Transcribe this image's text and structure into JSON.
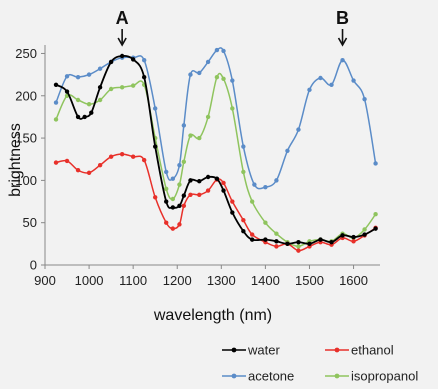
{
  "chart_data": {
    "type": "line",
    "title": "",
    "xlabel": "wavelength (nm)",
    "ylabel": "brightness",
    "xlim": [
      900,
      1660
    ],
    "ylim": [
      0,
      260
    ],
    "xticks": [
      900,
      1000,
      1100,
      1200,
      1300,
      1400,
      1500,
      1600
    ],
    "yticks": [
      0,
      50,
      100,
      150,
      200,
      250
    ],
    "grid": false,
    "legend_position": "bottom",
    "annotations": [
      {
        "label": "A",
        "x": 1075
      },
      {
        "label": "B",
        "x": 1575
      }
    ],
    "series": [
      {
        "name": "water",
        "color": "#000000",
        "x": [
          925,
          950,
          975,
          990,
          1005,
          1025,
          1050,
          1075,
          1100,
          1125,
          1150,
          1175,
          1190,
          1205,
          1215,
          1230,
          1250,
          1270,
          1290,
          1305,
          1325,
          1350,
          1370,
          1400,
          1425,
          1450,
          1475,
          1500,
          1525,
          1550,
          1575,
          1600,
          1625,
          1650
        ],
        "values": [
          213,
          205,
          175,
          175,
          180,
          210,
          240,
          247,
          243,
          222,
          140,
          75,
          68,
          70,
          82,
          100,
          99,
          104,
          102,
          88,
          62,
          40,
          30,
          30,
          28,
          25,
          27,
          25,
          30,
          27,
          35,
          33,
          36,
          43
        ]
      },
      {
        "name": "ethanol",
        "color": "#e8302a",
        "x": [
          925,
          950,
          975,
          1000,
          1025,
          1050,
          1075,
          1100,
          1125,
          1150,
          1175,
          1190,
          1205,
          1215,
          1230,
          1250,
          1270,
          1290,
          1305,
          1325,
          1350,
          1370,
          1400,
          1425,
          1450,
          1475,
          1500,
          1525,
          1550,
          1575,
          1600,
          1625,
          1650
        ],
        "values": [
          121,
          123,
          112,
          109,
          118,
          128,
          131,
          128,
          124,
          80,
          50,
          43,
          48,
          70,
          83,
          83,
          88,
          101,
          97,
          75,
          53,
          36,
          27,
          22,
          25,
          17,
          22,
          27,
          24,
          32,
          28,
          35,
          44
        ]
      },
      {
        "name": "acetone",
        "color": "#5b8cc8",
        "x": [
          925,
          950,
          975,
          1000,
          1025,
          1050,
          1075,
          1100,
          1125,
          1150,
          1175,
          1190,
          1205,
          1215,
          1230,
          1250,
          1270,
          1290,
          1305,
          1325,
          1350,
          1375,
          1400,
          1425,
          1450,
          1475,
          1500,
          1525,
          1550,
          1575,
          1600,
          1625,
          1650
        ],
        "values": [
          192,
          223,
          222,
          225,
          232,
          240,
          245,
          245,
          242,
          185,
          110,
          102,
          118,
          165,
          225,
          227,
          240,
          254,
          253,
          218,
          140,
          95,
          92,
          100,
          135,
          160,
          207,
          221,
          213,
          242,
          218,
          196,
          120
        ]
      },
      {
        "name": "isopropanol",
        "color": "#8fc45e",
        "x": [
          925,
          950,
          975,
          1000,
          1025,
          1050,
          1075,
          1100,
          1125,
          1150,
          1175,
          1190,
          1205,
          1215,
          1230,
          1250,
          1270,
          1290,
          1305,
          1325,
          1350,
          1370,
          1400,
          1425,
          1450,
          1475,
          1500,
          1525,
          1550,
          1575,
          1600,
          1625,
          1650
        ],
        "values": [
          172,
          200,
          195,
          190,
          195,
          208,
          210,
          212,
          213,
          150,
          90,
          78,
          95,
          122,
          153,
          150,
          175,
          222,
          220,
          185,
          110,
          75,
          50,
          37,
          27,
          22,
          28,
          30,
          28,
          37,
          32,
          42,
          60
        ]
      }
    ]
  }
}
